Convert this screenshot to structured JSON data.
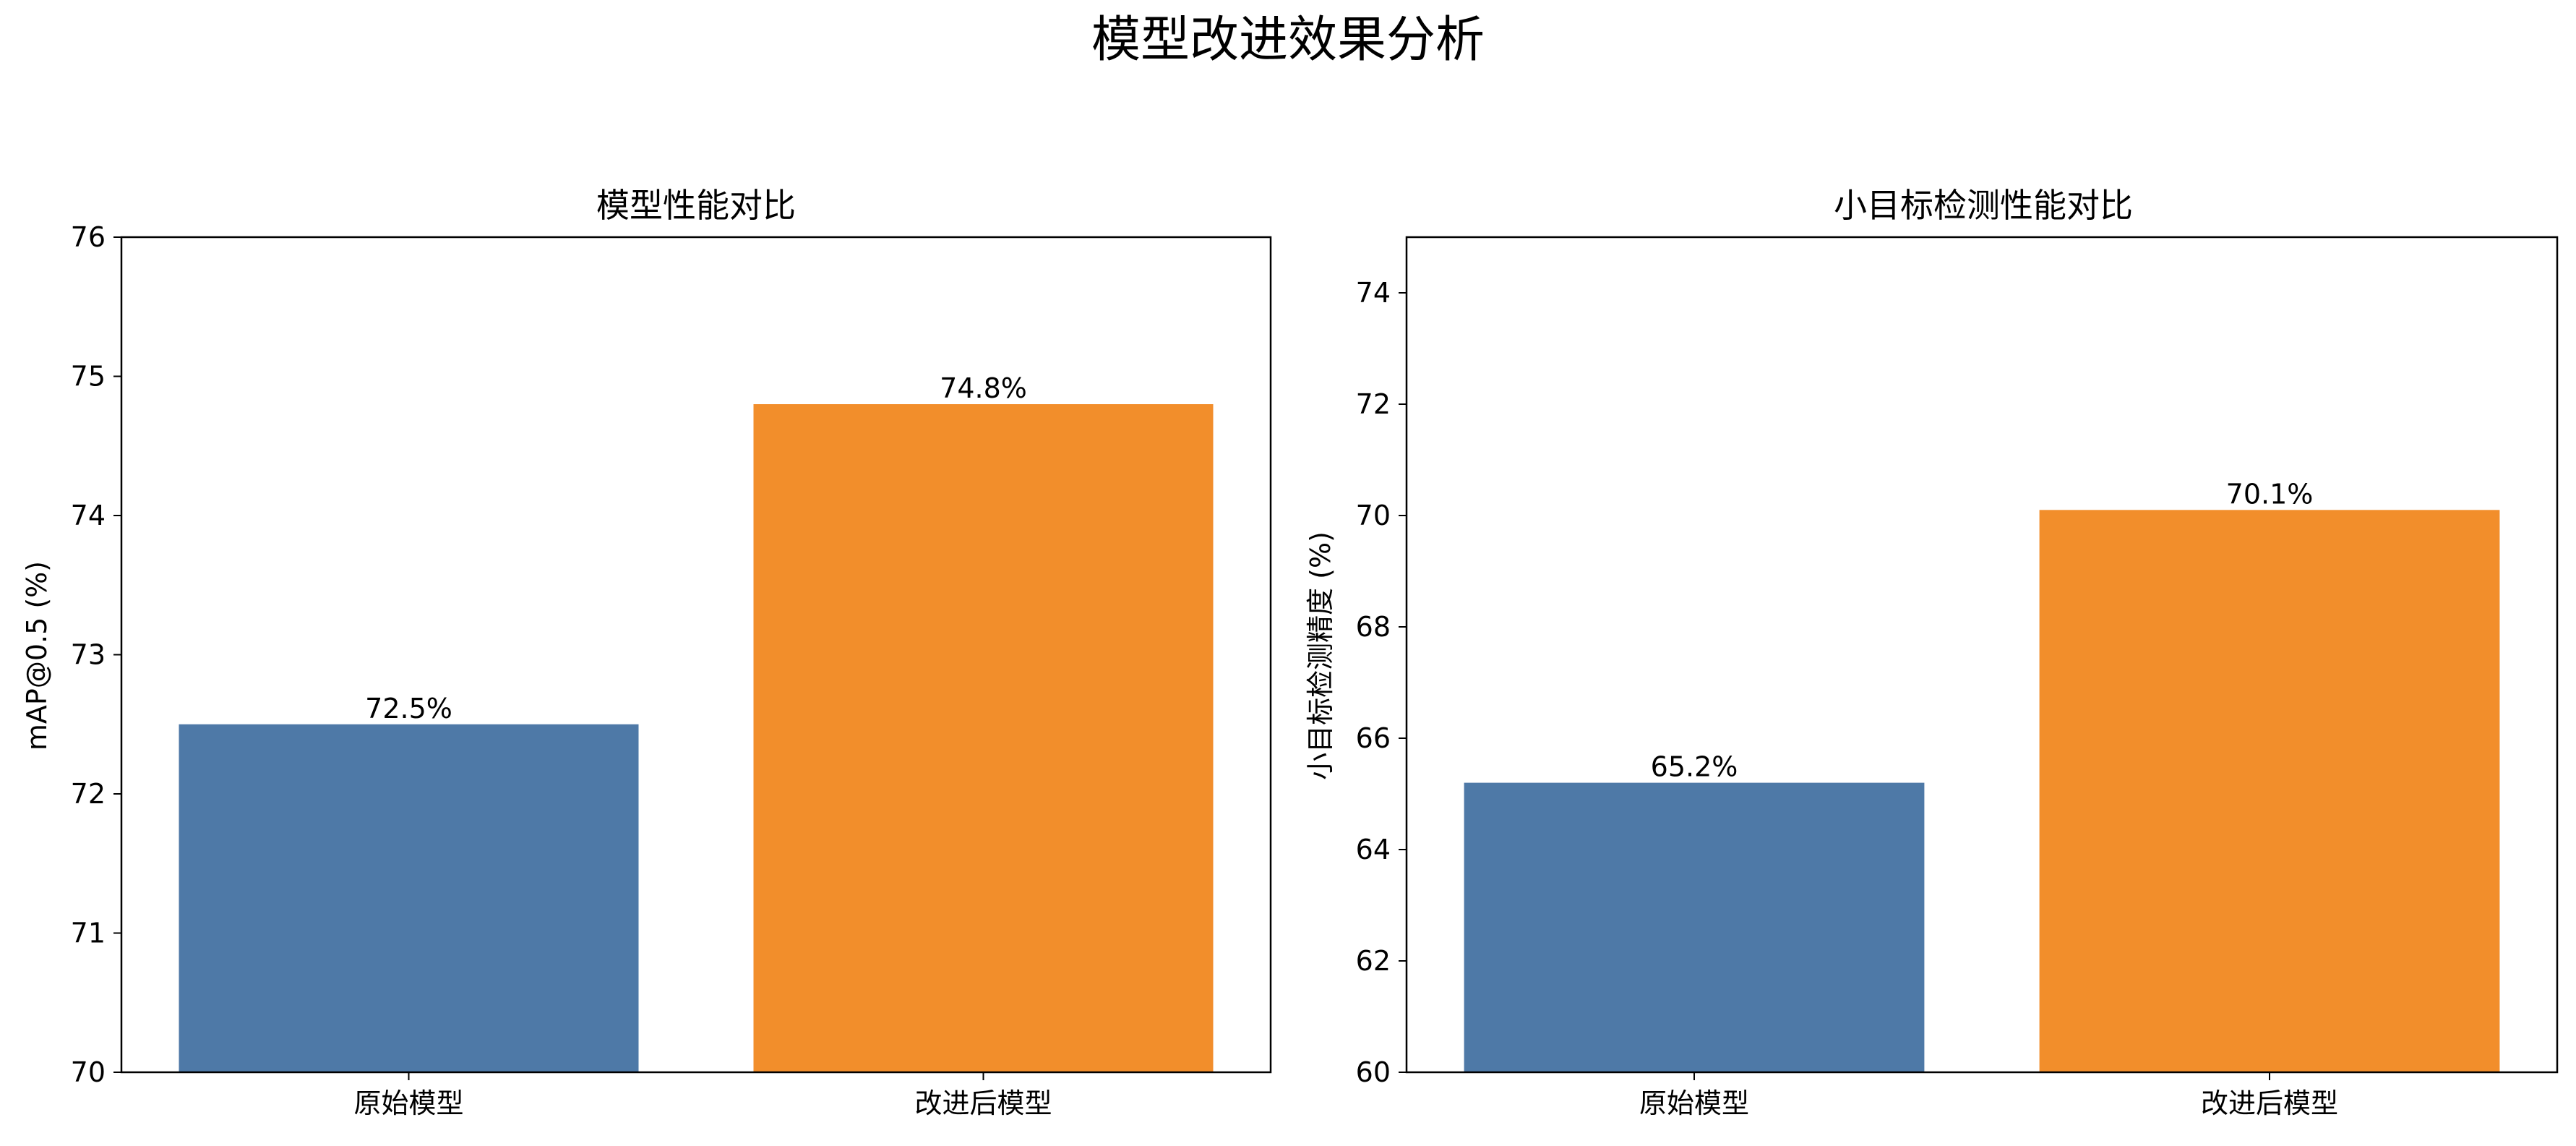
{
  "figure": {
    "suptitle": "模型改进效果分析"
  },
  "colors": {
    "original": "#4e79a7",
    "improved": "#f28e2b",
    "frame": "#000000"
  },
  "chart_data": [
    {
      "type": "bar",
      "title": "模型性能对比",
      "xlabel": "",
      "ylabel": "mAP@0.5 (%)",
      "categories": [
        "原始模型",
        "改进后模型"
      ],
      "values": [
        72.5,
        74.8
      ],
      "value_labels": [
        "72.5%",
        "74.8%"
      ],
      "ylim": [
        70,
        76
      ],
      "yticks": [
        70,
        71,
        72,
        73,
        74,
        75,
        76
      ],
      "bar_colors": [
        "#4e79a7",
        "#f28e2b"
      ],
      "grid": false,
      "legend": "none"
    },
    {
      "type": "bar",
      "title": "小目标检测性能对比",
      "xlabel": "",
      "ylabel": "小目标检测精度 (%)",
      "categories": [
        "原始模型",
        "改进后模型"
      ],
      "values": [
        65.2,
        70.1
      ],
      "value_labels": [
        "65.2%",
        "70.1%"
      ],
      "ylim": [
        60,
        75
      ],
      "yticks": [
        60,
        62,
        64,
        66,
        68,
        70,
        72,
        74
      ],
      "bar_colors": [
        "#4e79a7",
        "#f28e2b"
      ],
      "grid": false,
      "legend": "none"
    }
  ]
}
